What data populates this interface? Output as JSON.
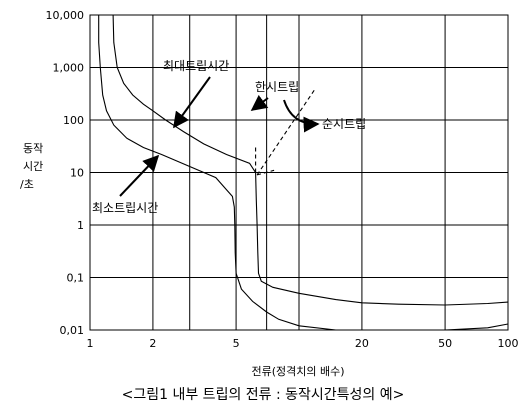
{
  "chart_data": {
    "type": "line",
    "title": "",
    "caption": "<그림1 내부 트립의 전류 : 동작시간특성의 예>",
    "xlabel": "전류(정격치의 배수)",
    "ylabel_lines": [
      "동작",
      "시간",
      "/초"
    ],
    "x_scale": "log",
    "y_scale": "log",
    "xlim": [
      1,
      100
    ],
    "ylim": [
      0.01,
      10000
    ],
    "grid": true,
    "x_ticks": [
      1,
      2,
      3,
      5,
      7,
      10,
      20,
      50,
      100
    ],
    "x_tick_labels": [
      "1",
      "2",
      "",
      "5",
      "",
      "",
      "20",
      "50",
      "100"
    ],
    "x_gridlines": [
      1,
      2,
      3,
      5,
      7,
      10,
      20,
      50,
      100
    ],
    "y_ticks": [
      0.01,
      0.1,
      1,
      10,
      100,
      1000,
      10000
    ],
    "y_tick_labels": [
      "0,01",
      "0,1",
      "1",
      "10",
      "100",
      "1,000",
      "10,000"
    ],
    "series": [
      {
        "name": "최대트립시간",
        "style": "solid",
        "points": [
          [
            1.29,
            10000
          ],
          [
            1.3,
            3000
          ],
          [
            1.35,
            1000
          ],
          [
            1.45,
            500
          ],
          [
            1.6,
            300
          ],
          [
            1.8,
            200
          ],
          [
            2.0,
            150
          ],
          [
            2.3,
            100
          ],
          [
            2.8,
            60
          ],
          [
            3.5,
            35
          ],
          [
            4.5,
            22
          ],
          [
            5.8,
            15
          ],
          [
            6.2,
            10
          ],
          [
            6.25,
            3
          ],
          [
            6.3,
            1
          ],
          [
            6.35,
            0.3
          ],
          [
            6.4,
            0.12
          ],
          [
            6.6,
            0.085
          ],
          [
            7.5,
            0.065
          ],
          [
            10,
            0.05
          ],
          [
            15,
            0.038
          ],
          [
            20,
            0.033
          ],
          [
            30,
            0.031
          ],
          [
            50,
            0.03
          ],
          [
            80,
            0.032
          ],
          [
            100,
            0.034
          ]
        ]
      },
      {
        "name": "최소트립시간",
        "style": "solid",
        "points": [
          [
            1.1,
            10000
          ],
          [
            1.1,
            3000
          ],
          [
            1.12,
            1000
          ],
          [
            1.15,
            300
          ],
          [
            1.2,
            150
          ],
          [
            1.3,
            80
          ],
          [
            1.5,
            45
          ],
          [
            1.8,
            30
          ],
          [
            2.2,
            22
          ],
          [
            3.0,
            13
          ],
          [
            4.0,
            8
          ],
          [
            4.5,
            4.7
          ],
          [
            4.8,
            3.5
          ],
          [
            4.9,
            2.2
          ],
          [
            4.93,
            1
          ],
          [
            4.95,
            0.3
          ],
          [
            5.0,
            0.12
          ],
          [
            5.3,
            0.06
          ],
          [
            6.0,
            0.035
          ],
          [
            7.0,
            0.022
          ],
          [
            8.0,
            0.016
          ],
          [
            10,
            0.012
          ],
          [
            15,
            0.01
          ],
          [
            20,
            0.01
          ],
          [
            50,
            0.01
          ],
          [
            80,
            0.011
          ],
          [
            100,
            0.013
          ]
        ]
      },
      {
        "name": "한시트립",
        "style": "dashed",
        "points": [
          [
            6.2,
            30
          ],
          [
            6.2,
            9
          ]
        ]
      },
      {
        "name": "순시트립",
        "style": "dashed",
        "points": [
          [
            6.3,
            9
          ],
          [
            12,
            400
          ]
        ]
      },
      {
        "name": "",
        "style": "dashed",
        "points": [
          [
            6.3,
            9
          ],
          [
            7.6,
            11
          ]
        ]
      }
    ],
    "annotations": [
      {
        "id": "max_trip",
        "text": "최대트립시간"
      },
      {
        "id": "limited_trip",
        "text": "한시트립"
      },
      {
        "id": "instant_trip",
        "text": "순시트립"
      },
      {
        "id": "min_trip",
        "text": "최소트립시간"
      }
    ]
  }
}
